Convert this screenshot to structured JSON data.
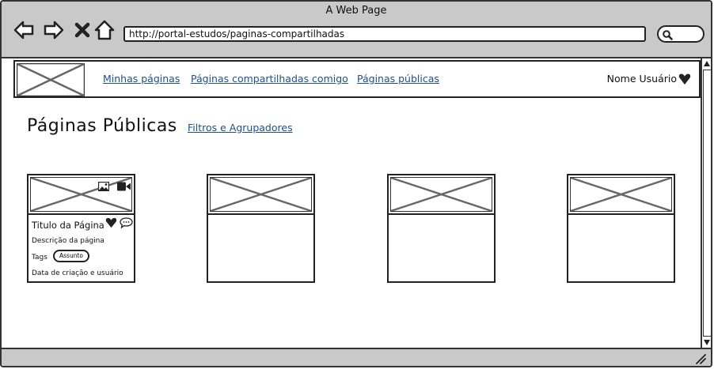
{
  "window": {
    "title": "A Web Page"
  },
  "browser": {
    "url": "http://portal-estudos/paginas-compartilhadas"
  },
  "nav": {
    "links": [
      "Minhas páginas",
      "Páginas compartilhadas comigo",
      "Páginas públicas"
    ],
    "user_name": "Nome Usuário"
  },
  "page": {
    "title": "Páginas Públicas",
    "filter_link": "Filtros e Agrupadores"
  },
  "card": {
    "title": "Titulo da Página",
    "description": "Descrição da página",
    "tags_label": "Tags",
    "tag": "Assunto",
    "meta": "Data de criação e usuário"
  },
  "icons": [
    "back-icon",
    "forward-icon",
    "close-icon",
    "home-icon",
    "search-icon",
    "image-icon",
    "video-icon",
    "heart-icon",
    "comment-icon"
  ]
}
